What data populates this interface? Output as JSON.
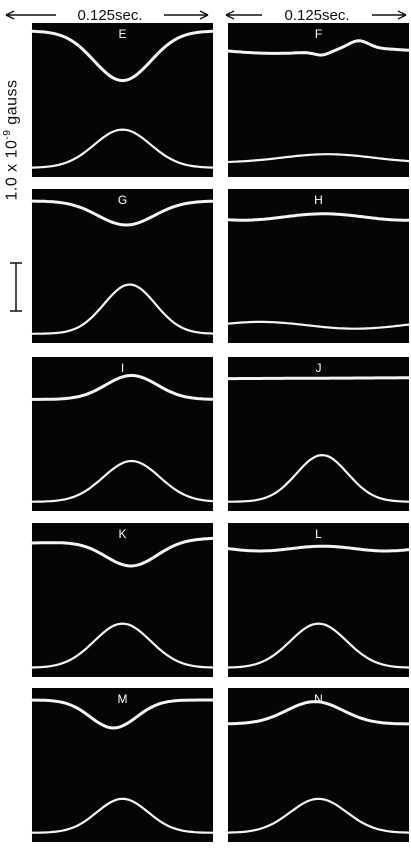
{
  "time_scale": {
    "left_label": "0.125sec.",
    "right_label": "0.125sec."
  },
  "scale": {
    "prefix": "1.0 x 10",
    "exponent": "-9",
    "unit": "gauss"
  },
  "panels": [
    {
      "letter": "E",
      "upper": "large dip",
      "lower": "single hump"
    },
    {
      "letter": "F",
      "upper": "flat with small bump",
      "lower": "low amplitude"
    },
    {
      "letter": "G",
      "upper": "dip",
      "lower": "single hump"
    },
    {
      "letter": "H",
      "upper": "low amplitude",
      "lower": "low amplitude"
    },
    {
      "letter": "I",
      "upper": "single hump",
      "lower": "single hump"
    },
    {
      "letter": "J",
      "upper": "nearly flat",
      "lower": "single hump"
    },
    {
      "letter": "K",
      "upper": "dip",
      "lower": "single hump"
    },
    {
      "letter": "L",
      "upper": "nearly flat",
      "lower": "single hump"
    },
    {
      "letter": "M",
      "upper": "dip",
      "lower": "single hump"
    },
    {
      "letter": "N",
      "upper": "single hump",
      "lower": "single hump"
    }
  ],
  "colors": {
    "panel_bg": "#050505",
    "trace": "#f4f4f4",
    "ink": "#111111"
  }
}
